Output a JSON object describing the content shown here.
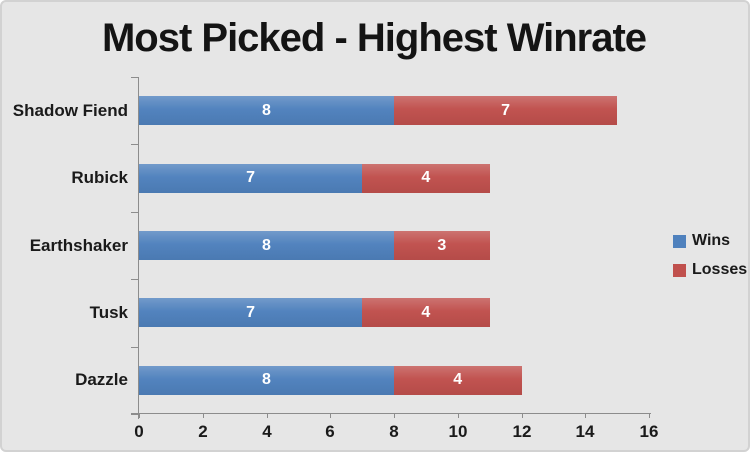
{
  "chart_data": {
    "type": "bar",
    "orientation": "horizontal",
    "stacked": true,
    "title": "Most Picked - Highest Winrate",
    "categories": [
      "Shadow Fiend",
      "Rubick",
      "Earthshaker",
      "Tusk",
      "Dazzle"
    ],
    "series": [
      {
        "name": "Wins",
        "color": "#4F81BD",
        "values": [
          8,
          7,
          8,
          7,
          8
        ]
      },
      {
        "name": "Losses",
        "color": "#C0504D",
        "values": [
          7,
          4,
          3,
          4,
          4
        ]
      }
    ],
    "totals": [
      15,
      11,
      11,
      11,
      12
    ],
    "x_axis": {
      "min": 0,
      "max": 16,
      "tick_interval": 2,
      "tick_labels": [
        "0",
        "2",
        "4",
        "6",
        "8",
        "10",
        "12",
        "14",
        "16"
      ]
    },
    "grid": false,
    "legend": {
      "position": "right",
      "entries": [
        "Wins",
        "Losses"
      ]
    }
  },
  "colors": {
    "background": "#E6E6E6",
    "axis": "#8C8C8C",
    "text": "#1A1A1A",
    "bar_label": "#FFFFFF",
    "wins": "#4F81BD",
    "losses": "#C0504D"
  }
}
